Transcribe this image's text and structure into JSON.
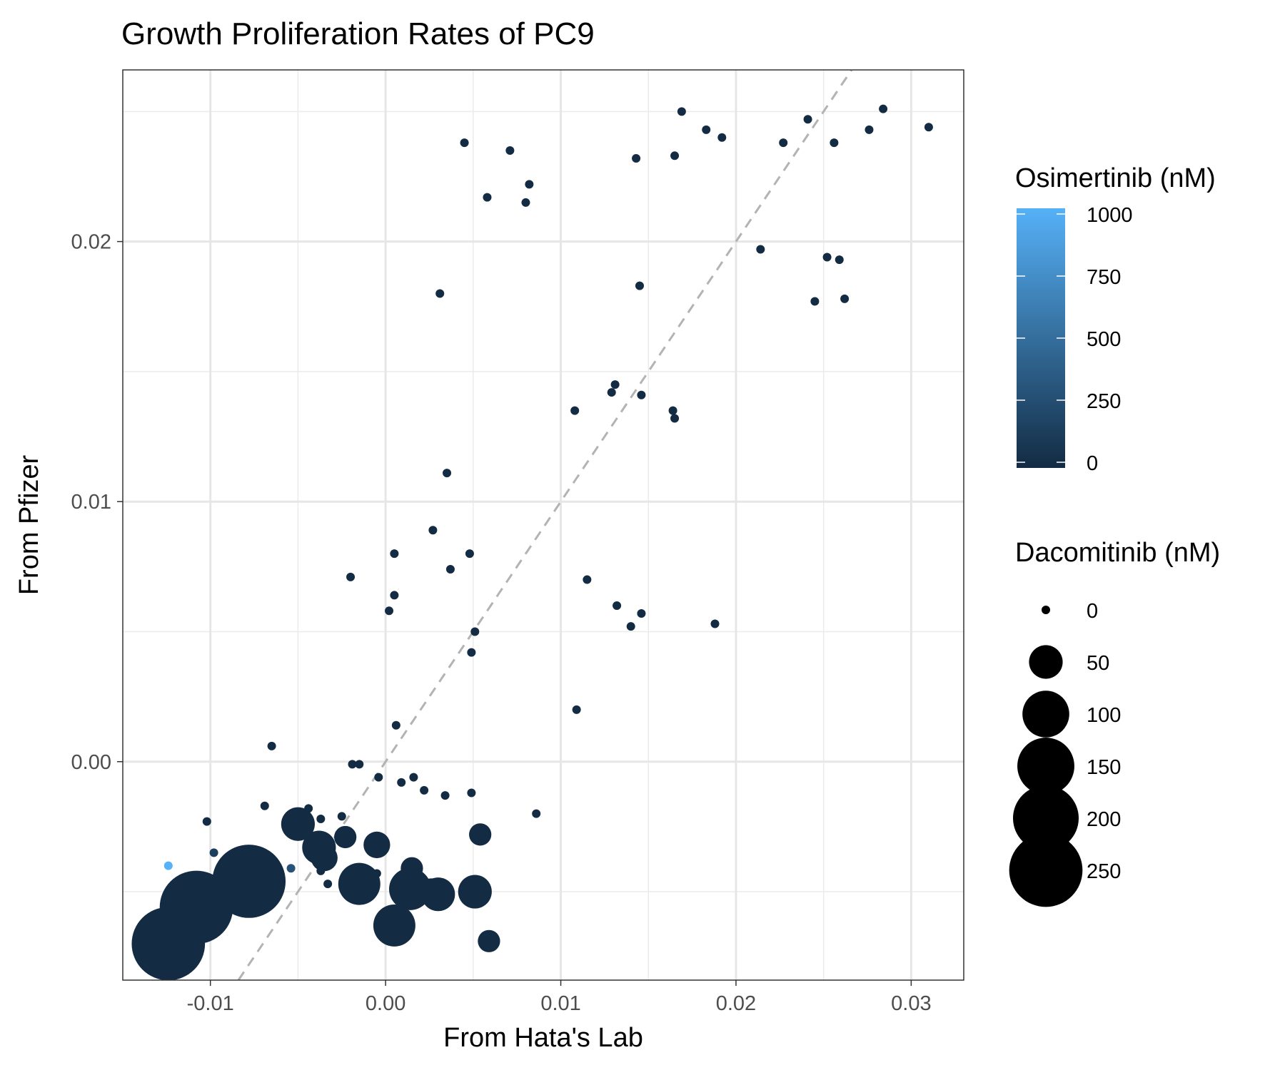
{
  "chart_data": {
    "type": "scatter",
    "title": "Growth Proliferation Rates of PC9",
    "xlabel": "From Hata's Lab",
    "ylabel": "From Pfizer",
    "xlim": [
      -0.015,
      0.033
    ],
    "ylim": [
      -0.0084,
      0.0266
    ],
    "x_ticks": [
      -0.01,
      0.0,
      0.01,
      0.02,
      0.03
    ],
    "x_tick_labels": [
      "-0.01",
      "0.00",
      "0.01",
      "0.02",
      "0.03"
    ],
    "y_ticks": [
      0.0,
      0.01,
      0.02
    ],
    "y_tick_labels": [
      "0.00",
      "0.01",
      "0.02"
    ],
    "grid": true,
    "reference_line": {
      "style": "dashed",
      "slope": 1,
      "intercept": 0,
      "color": "#b3b3b3"
    },
    "color_legend": {
      "title": "Osimertinib (nM)",
      "range": [
        0,
        1000
      ],
      "ticks": [
        0,
        250,
        500,
        750,
        1000
      ],
      "tick_labels": [
        "0",
        "250",
        "500",
        "750",
        "1000"
      ],
      "low_color": "#132b43",
      "high_color": "#56b1f7"
    },
    "size_legend": {
      "title": "Dacomitinib (nM)",
      "values": [
        0,
        50,
        100,
        150,
        200,
        250
      ],
      "labels": [
        "0",
        "50",
        "100",
        "150",
        "200",
        "250"
      ]
    },
    "legend_position": "right",
    "points": [
      {
        "x": 0.0045,
        "y": 0.0238,
        "osi": 0,
        "daco": 0
      },
      {
        "x": 0.0071,
        "y": 0.0235,
        "osi": 0,
        "daco": 0
      },
      {
        "x": 0.0058,
        "y": 0.0217,
        "osi": 0,
        "daco": 0
      },
      {
        "x": 0.0082,
        "y": 0.0222,
        "osi": 0,
        "daco": 0
      },
      {
        "x": 0.008,
        "y": 0.0215,
        "osi": 0,
        "daco": 0
      },
      {
        "x": 0.0031,
        "y": 0.018,
        "osi": 0,
        "daco": 0
      },
      {
        "x": 0.0143,
        "y": 0.0232,
        "osi": 0,
        "daco": 0
      },
      {
        "x": 0.0165,
        "y": 0.0233,
        "osi": 0,
        "daco": 0
      },
      {
        "x": 0.0169,
        "y": 0.025,
        "osi": 0,
        "daco": 0
      },
      {
        "x": 0.0183,
        "y": 0.0243,
        "osi": 0,
        "daco": 0
      },
      {
        "x": 0.0192,
        "y": 0.024,
        "osi": 0,
        "daco": 0
      },
      {
        "x": 0.0227,
        "y": 0.0238,
        "osi": 0,
        "daco": 0
      },
      {
        "x": 0.0241,
        "y": 0.0247,
        "osi": 0,
        "daco": 0
      },
      {
        "x": 0.0256,
        "y": 0.0238,
        "osi": 0,
        "daco": 0
      },
      {
        "x": 0.0276,
        "y": 0.0243,
        "osi": 0,
        "daco": 0
      },
      {
        "x": 0.0284,
        "y": 0.0251,
        "osi": 0,
        "daco": 0
      },
      {
        "x": 0.031,
        "y": 0.0244,
        "osi": 0,
        "daco": 0
      },
      {
        "x": 0.0214,
        "y": 0.0197,
        "osi": 0,
        "daco": 0
      },
      {
        "x": 0.0252,
        "y": 0.0194,
        "osi": 0,
        "daco": 0
      },
      {
        "x": 0.0259,
        "y": 0.0193,
        "osi": 0,
        "daco": 0
      },
      {
        "x": 0.0145,
        "y": 0.0183,
        "osi": 0,
        "daco": 0
      },
      {
        "x": 0.0245,
        "y": 0.0177,
        "osi": 0,
        "daco": 0
      },
      {
        "x": 0.0262,
        "y": 0.0178,
        "osi": 0,
        "daco": 0
      },
      {
        "x": 0.0131,
        "y": 0.0145,
        "osi": 0,
        "daco": 0
      },
      {
        "x": 0.0129,
        "y": 0.0142,
        "osi": 0,
        "daco": 0
      },
      {
        "x": 0.0146,
        "y": 0.0141,
        "osi": 0,
        "daco": 0
      },
      {
        "x": 0.0108,
        "y": 0.0135,
        "osi": 0,
        "daco": 0
      },
      {
        "x": 0.0164,
        "y": 0.0135,
        "osi": 0,
        "daco": 0
      },
      {
        "x": 0.0165,
        "y": 0.0132,
        "osi": 0,
        "daco": 0
      },
      {
        "x": 0.0035,
        "y": 0.0111,
        "osi": 0,
        "daco": 0
      },
      {
        "x": 0.0027,
        "y": 0.0089,
        "osi": 0,
        "daco": 0
      },
      {
        "x": 0.0005,
        "y": 0.008,
        "osi": 0,
        "daco": 0
      },
      {
        "x": 0.0048,
        "y": 0.008,
        "osi": 0,
        "daco": 0
      },
      {
        "x": 0.0037,
        "y": 0.0074,
        "osi": 0,
        "daco": 0
      },
      {
        "x": -0.002,
        "y": 0.0071,
        "osi": 0,
        "daco": 0
      },
      {
        "x": 0.0115,
        "y": 0.007,
        "osi": 0,
        "daco": 0
      },
      {
        "x": 0.0005,
        "y": 0.0064,
        "osi": 0,
        "daco": 0
      },
      {
        "x": 0.0002,
        "y": 0.0058,
        "osi": 0,
        "daco": 0
      },
      {
        "x": 0.0132,
        "y": 0.006,
        "osi": 0,
        "daco": 0
      },
      {
        "x": 0.0146,
        "y": 0.0057,
        "osi": 0,
        "daco": 0
      },
      {
        "x": 0.014,
        "y": 0.0052,
        "osi": 0,
        "daco": 0
      },
      {
        "x": 0.0188,
        "y": 0.0053,
        "osi": 0,
        "daco": 0
      },
      {
        "x": 0.0051,
        "y": 0.005,
        "osi": 0,
        "daco": 0
      },
      {
        "x": 0.0049,
        "y": 0.0042,
        "osi": 0,
        "daco": 0
      },
      {
        "x": 0.0109,
        "y": 0.002,
        "osi": 0,
        "daco": 0
      },
      {
        "x": 0.0006,
        "y": 0.0014,
        "osi": 0,
        "daco": 0
      },
      {
        "x": -0.0065,
        "y": 0.0006,
        "osi": 0,
        "daco": 0
      },
      {
        "x": -0.0019,
        "y": -0.0001,
        "osi": 0,
        "daco": 0
      },
      {
        "x": -0.0015,
        "y": -0.0001,
        "osi": 0,
        "daco": 0
      },
      {
        "x": -0.0004,
        "y": -0.0006,
        "osi": 0,
        "daco": 0
      },
      {
        "x": 0.0009,
        "y": -0.0008,
        "osi": 0,
        "daco": 0
      },
      {
        "x": 0.0016,
        "y": -0.0006,
        "osi": 0,
        "daco": 0
      },
      {
        "x": 0.0022,
        "y": -0.0011,
        "osi": 0,
        "daco": 0
      },
      {
        "x": 0.0034,
        "y": -0.0013,
        "osi": 0,
        "daco": 0
      },
      {
        "x": 0.0049,
        "y": -0.0012,
        "osi": 0,
        "daco": 0
      },
      {
        "x": -0.0069,
        "y": -0.0017,
        "osi": 0,
        "daco": 0
      },
      {
        "x": -0.0044,
        "y": -0.0018,
        "osi": 0,
        "daco": 0
      },
      {
        "x": -0.0037,
        "y": -0.0022,
        "osi": 0,
        "daco": 0
      },
      {
        "x": -0.0025,
        "y": -0.0021,
        "osi": 0,
        "daco": 0
      },
      {
        "x": 0.0086,
        "y": -0.002,
        "osi": 0,
        "daco": 0
      },
      {
        "x": -0.0102,
        "y": -0.0023,
        "osi": 0,
        "daco": 0
      },
      {
        "x": -0.005,
        "y": -0.0024,
        "osi": 0,
        "daco": 50
      },
      {
        "x": -0.0023,
        "y": -0.0029,
        "osi": 0,
        "daco": 20
      },
      {
        "x": 0.0054,
        "y": -0.0028,
        "osi": 0,
        "daco": 20
      },
      {
        "x": -0.0038,
        "y": -0.0033,
        "osi": 0,
        "daco": 50
      },
      {
        "x": -0.0035,
        "y": -0.0037,
        "osi": 0,
        "daco": 30
      },
      {
        "x": -0.0005,
        "y": -0.0032,
        "osi": 0,
        "daco": 30
      },
      {
        "x": -0.0098,
        "y": -0.0035,
        "osi": 150,
        "daco": 0
      },
      {
        "x": -0.0037,
        "y": -0.0042,
        "osi": 0,
        "daco": 0
      },
      {
        "x": -0.0054,
        "y": -0.0041,
        "osi": 300,
        "daco": 0
      },
      {
        "x": -0.0005,
        "y": -0.0043,
        "osi": 0,
        "daco": 0
      },
      {
        "x": 0.0015,
        "y": -0.0041,
        "osi": 0,
        "daco": 20
      },
      {
        "x": -0.0033,
        "y": -0.0047,
        "osi": 0,
        "daco": 0
      },
      {
        "x": -0.0124,
        "y": -0.004,
        "osi": 1000,
        "daco": 0
      },
      {
        "x": -0.0102,
        "y": -0.005,
        "osi": 0,
        "daco": 0
      },
      {
        "x": -0.0078,
        "y": -0.0046,
        "osi": 0,
        "daco": 250
      },
      {
        "x": -0.0015,
        "y": -0.0047,
        "osi": 0,
        "daco": 80
      },
      {
        "x": 0.0014,
        "y": -0.0049,
        "osi": 0,
        "daco": 80
      },
      {
        "x": 0.0026,
        "y": -0.005,
        "osi": 0,
        "daco": 30
      },
      {
        "x": 0.003,
        "y": -0.0051,
        "osi": 0,
        "daco": 50
      },
      {
        "x": 0.0051,
        "y": -0.005,
        "osi": 0,
        "daco": 50
      },
      {
        "x": -0.009,
        "y": -0.0054,
        "osi": 0,
        "daco": 10
      },
      {
        "x": -0.0108,
        "y": -0.0056,
        "osi": 0,
        "daco": 250
      },
      {
        "x": 0.0005,
        "y": -0.0063,
        "osi": 0,
        "daco": 80
      },
      {
        "x": -0.0124,
        "y": -0.007,
        "osi": 0,
        "daco": 250
      },
      {
        "x": 0.0059,
        "y": -0.0069,
        "osi": 0,
        "daco": 20
      }
    ]
  }
}
